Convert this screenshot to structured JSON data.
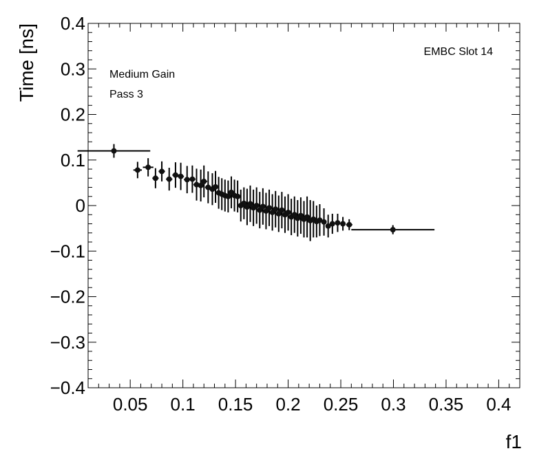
{
  "chart_data": {
    "type": "scatter",
    "xlabel": "f1",
    "ylabel": "Time [ns]",
    "xlim": [
      0.01,
      0.42
    ],
    "ylim": [
      -0.4,
      0.4
    ],
    "x_ticks": [
      0.05,
      0.1,
      0.15,
      0.2,
      0.25,
      0.3,
      0.35,
      0.4
    ],
    "x_tick_labels": [
      "0.05",
      "0.1",
      "0.15",
      "0.2",
      "0.25",
      "0.3",
      "0.35",
      "0.4"
    ],
    "y_ticks": [
      -0.4,
      -0.3,
      -0.2,
      -0.1,
      0,
      0.1,
      0.2,
      0.3,
      0.4
    ],
    "y_tick_labels": [
      "−0.4",
      "−0.3",
      "−0.2",
      "−0.1",
      "0",
      "0.1",
      "0.2",
      "0.3",
      "0.4"
    ],
    "annotations": {
      "top_right": "EMBC Slot 14",
      "line1": "Medium Gain",
      "line2": "Pass 3"
    },
    "grid": false,
    "points": [
      {
        "x": 0.0345,
        "y": 0.12,
        "xerr_lo": 0.0345,
        "xerr_hi": 0.0345,
        "yerr": 0.015
      },
      {
        "x": 0.057,
        "y": 0.078,
        "xerr_lo": 0.004,
        "xerr_hi": 0.004,
        "yerr": 0.018
      },
      {
        "x": 0.067,
        "y": 0.084,
        "xerr_lo": 0.005,
        "xerr_hi": 0.005,
        "yerr": 0.02
      },
      {
        "x": 0.074,
        "y": 0.06,
        "xerr_lo": 0.003,
        "xerr_hi": 0.003,
        "yerr": 0.022
      },
      {
        "x": 0.08,
        "y": 0.075,
        "xerr_lo": 0.003,
        "xerr_hi": 0.003,
        "yerr": 0.022
      },
      {
        "x": 0.087,
        "y": 0.058,
        "xerr_lo": 0.003,
        "xerr_hi": 0.003,
        "yerr": 0.025
      },
      {
        "x": 0.093,
        "y": 0.067,
        "xerr_lo": 0.003,
        "xerr_hi": 0.003,
        "yerr": 0.028
      },
      {
        "x": 0.098,
        "y": 0.064,
        "xerr_lo": 0.003,
        "xerr_hi": 0.003,
        "yerr": 0.03
      },
      {
        "x": 0.104,
        "y": 0.057,
        "xerr_lo": 0.003,
        "xerr_hi": 0.003,
        "yerr": 0.03
      },
      {
        "x": 0.109,
        "y": 0.058,
        "xerr_lo": 0.003,
        "xerr_hi": 0.003,
        "yerr": 0.03
      },
      {
        "x": 0.113,
        "y": 0.046,
        "xerr_lo": 0.003,
        "xerr_hi": 0.003,
        "yerr": 0.035
      },
      {
        "x": 0.117,
        "y": 0.044,
        "xerr_lo": 0.003,
        "xerr_hi": 0.003,
        "yerr": 0.035
      },
      {
        "x": 0.12,
        "y": 0.053,
        "xerr_lo": 0.003,
        "xerr_hi": 0.003,
        "yerr": 0.035
      },
      {
        "x": 0.124,
        "y": 0.04,
        "xerr_lo": 0.003,
        "xerr_hi": 0.003,
        "yerr": 0.035
      },
      {
        "x": 0.128,
        "y": 0.036,
        "xerr_lo": 0.003,
        "xerr_hi": 0.003,
        "yerr": 0.035
      },
      {
        "x": 0.131,
        "y": 0.041,
        "xerr_lo": 0.003,
        "xerr_hi": 0.003,
        "yerr": 0.035
      },
      {
        "x": 0.134,
        "y": 0.028,
        "xerr_lo": 0.003,
        "xerr_hi": 0.003,
        "yerr": 0.035
      },
      {
        "x": 0.137,
        "y": 0.025,
        "xerr_lo": 0.003,
        "xerr_hi": 0.003,
        "yerr": 0.035
      },
      {
        "x": 0.14,
        "y": 0.022,
        "xerr_lo": 0.003,
        "xerr_hi": 0.003,
        "yerr": 0.035
      },
      {
        "x": 0.143,
        "y": 0.02,
        "xerr_lo": 0.003,
        "xerr_hi": 0.003,
        "yerr": 0.035
      },
      {
        "x": 0.146,
        "y": 0.029,
        "xerr_lo": 0.003,
        "xerr_hi": 0.003,
        "yerr": 0.035
      },
      {
        "x": 0.149,
        "y": 0.022,
        "xerr_lo": 0.003,
        "xerr_hi": 0.003,
        "yerr": 0.035
      },
      {
        "x": 0.152,
        "y": 0.02,
        "xerr_lo": 0.003,
        "xerr_hi": 0.003,
        "yerr": 0.035
      },
      {
        "x": 0.155,
        "y": 0.0,
        "xerr_lo": 0.002,
        "xerr_hi": 0.002,
        "yerr": 0.035
      },
      {
        "x": 0.158,
        "y": 0.005,
        "xerr_lo": 0.002,
        "xerr_hi": 0.002,
        "yerr": 0.035
      },
      {
        "x": 0.161,
        "y": -0.003,
        "xerr_lo": 0.002,
        "xerr_hi": 0.002,
        "yerr": 0.04
      },
      {
        "x": 0.164,
        "y": 0.004,
        "xerr_lo": 0.002,
        "xerr_hi": 0.002,
        "yerr": 0.04
      },
      {
        "x": 0.167,
        "y": -0.005,
        "xerr_lo": 0.002,
        "xerr_hi": 0.002,
        "yerr": 0.04
      },
      {
        "x": 0.17,
        "y": 0.0,
        "xerr_lo": 0.002,
        "xerr_hi": 0.002,
        "yerr": 0.04
      },
      {
        "x": 0.173,
        "y": -0.01,
        "xerr_lo": 0.002,
        "xerr_hi": 0.002,
        "yerr": 0.04
      },
      {
        "x": 0.176,
        "y": -0.002,
        "xerr_lo": 0.002,
        "xerr_hi": 0.002,
        "yerr": 0.04
      },
      {
        "x": 0.179,
        "y": -0.012,
        "xerr_lo": 0.002,
        "xerr_hi": 0.002,
        "yerr": 0.04
      },
      {
        "x": 0.182,
        "y": -0.005,
        "xerr_lo": 0.002,
        "xerr_hi": 0.002,
        "yerr": 0.04
      },
      {
        "x": 0.185,
        "y": -0.015,
        "xerr_lo": 0.002,
        "xerr_hi": 0.002,
        "yerr": 0.04
      },
      {
        "x": 0.188,
        "y": -0.008,
        "xerr_lo": 0.002,
        "xerr_hi": 0.002,
        "yerr": 0.04
      },
      {
        "x": 0.191,
        "y": -0.018,
        "xerr_lo": 0.002,
        "xerr_hi": 0.002,
        "yerr": 0.04
      },
      {
        "x": 0.194,
        "y": -0.01,
        "xerr_lo": 0.002,
        "xerr_hi": 0.002,
        "yerr": 0.04
      },
      {
        "x": 0.197,
        "y": -0.02,
        "xerr_lo": 0.002,
        "xerr_hi": 0.002,
        "yerr": 0.04
      },
      {
        "x": 0.2,
        "y": -0.015,
        "xerr_lo": 0.002,
        "xerr_hi": 0.002,
        "yerr": 0.04
      },
      {
        "x": 0.203,
        "y": -0.025,
        "xerr_lo": 0.002,
        "xerr_hi": 0.002,
        "yerr": 0.04
      },
      {
        "x": 0.206,
        "y": -0.02,
        "xerr_lo": 0.002,
        "xerr_hi": 0.002,
        "yerr": 0.04
      },
      {
        "x": 0.209,
        "y": -0.028,
        "xerr_lo": 0.002,
        "xerr_hi": 0.002,
        "yerr": 0.04
      },
      {
        "x": 0.212,
        "y": -0.022,
        "xerr_lo": 0.002,
        "xerr_hi": 0.002,
        "yerr": 0.04
      },
      {
        "x": 0.215,
        "y": -0.03,
        "xerr_lo": 0.002,
        "xerr_hi": 0.002,
        "yerr": 0.04
      },
      {
        "x": 0.218,
        "y": -0.025,
        "xerr_lo": 0.002,
        "xerr_hi": 0.002,
        "yerr": 0.045
      },
      {
        "x": 0.221,
        "y": -0.033,
        "xerr_lo": 0.002,
        "xerr_hi": 0.002,
        "yerr": 0.045
      },
      {
        "x": 0.224,
        "y": -0.03,
        "xerr_lo": 0.002,
        "xerr_hi": 0.002,
        "yerr": 0.04
      },
      {
        "x": 0.227,
        "y": -0.035,
        "xerr_lo": 0.002,
        "xerr_hi": 0.002,
        "yerr": 0.035
      },
      {
        "x": 0.23,
        "y": -0.032,
        "xerr_lo": 0.002,
        "xerr_hi": 0.002,
        "yerr": 0.035
      },
      {
        "x": 0.234,
        "y": -0.036,
        "xerr_lo": 0.002,
        "xerr_hi": 0.002,
        "yerr": 0.03
      },
      {
        "x": 0.238,
        "y": -0.045,
        "xerr_lo": 0.002,
        "xerr_hi": 0.002,
        "yerr": 0.025
      },
      {
        "x": 0.242,
        "y": -0.04,
        "xerr_lo": 0.002,
        "xerr_hi": 0.002,
        "yerr": 0.022
      },
      {
        "x": 0.247,
        "y": -0.038,
        "xerr_lo": 0.002,
        "xerr_hi": 0.002,
        "yerr": 0.02
      },
      {
        "x": 0.252,
        "y": -0.04,
        "xerr_lo": 0.002,
        "xerr_hi": 0.002,
        "yerr": 0.015
      },
      {
        "x": 0.258,
        "y": -0.042,
        "xerr_lo": 0.003,
        "xerr_hi": 0.003,
        "yerr": 0.012
      },
      {
        "x": 0.2995,
        "y": -0.053,
        "xerr_lo": 0.0395,
        "xerr_hi": 0.0395,
        "yerr": 0.01
      }
    ]
  }
}
